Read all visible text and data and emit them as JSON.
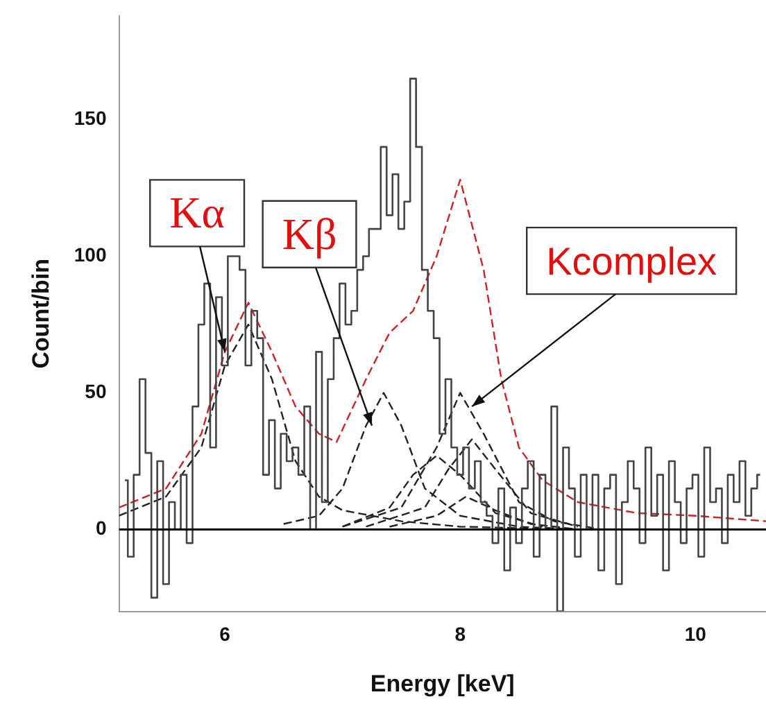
{
  "chart_data": {
    "type": "step",
    "xlabel": "Energy [keV]",
    "ylabel": "Count/bin",
    "xlim": [
      5.1,
      10.6
    ],
    "ylim": [
      -30,
      188
    ],
    "xticks": [
      6,
      8,
      10
    ],
    "yticks": [
      0,
      50,
      100,
      150
    ],
    "grid": false,
    "legend": false,
    "marker": "none",
    "ref_lines": [
      {
        "axis": "y",
        "value": 0,
        "color": "#000000"
      }
    ],
    "annotations": [
      {
        "text": "Kα",
        "x": 6.0,
        "y": 65
      },
      {
        "text": "Kβ",
        "x": 7.25,
        "y": 38
      },
      {
        "text": "Kcomplex",
        "x": 8.1,
        "y": 45
      }
    ],
    "series": [
      {
        "color": "#444444",
        "line_style": "solid",
        "x": [
          5.15,
          5.2,
          5.25,
          5.3,
          5.35,
          5.4,
          5.45,
          5.5,
          5.55,
          5.6,
          5.65,
          5.7,
          5.75,
          5.8,
          5.85,
          5.9,
          5.95,
          6.0,
          6.05,
          6.1,
          6.15,
          6.2,
          6.25,
          6.3,
          6.35,
          6.4,
          6.45,
          6.5,
          6.55,
          6.6,
          6.65,
          6.7,
          6.75,
          6.8,
          6.85,
          6.9,
          6.95,
          7.0,
          7.05,
          7.1,
          7.15,
          7.2,
          7.25,
          7.3,
          7.35,
          7.4,
          7.45,
          7.5,
          7.55,
          7.6,
          7.65,
          7.7,
          7.75,
          7.8,
          7.85,
          7.9,
          7.95,
          8.0,
          8.05,
          8.1,
          8.15,
          8.2,
          8.25,
          8.3,
          8.35,
          8.4,
          8.45,
          8.5,
          8.55,
          8.6,
          8.65,
          8.7,
          8.75,
          8.8,
          8.85,
          8.9,
          8.95,
          9.0,
          9.05,
          9.1,
          9.15,
          9.2,
          9.25,
          9.3,
          9.35,
          9.4,
          9.45,
          9.5,
          9.55,
          9.6,
          9.65,
          9.7,
          9.75,
          9.8,
          9.85,
          9.9,
          9.95,
          10.0,
          10.05,
          10.1,
          10.15,
          10.2,
          10.25,
          10.3,
          10.35,
          10.4,
          10.45,
          10.5,
          10.55
        ],
        "values": [
          18,
          -10,
          20,
          55,
          28,
          -25,
          25,
          -20,
          10,
          0,
          20,
          -5,
          45,
          75,
          90,
          30,
          85,
          60,
          100,
          100,
          95,
          60,
          80,
          70,
          20,
          40,
          15,
          35,
          25,
          30,
          20,
          45,
          0,
          65,
          10,
          55,
          70,
          90,
          75,
          80,
          95,
          100,
          110,
          110,
          140,
          115,
          130,
          110,
          120,
          165,
          140,
          95,
          80,
          70,
          35,
          55,
          30,
          20,
          30,
          15,
          25,
          10,
          5,
          -5,
          15,
          -15,
          8,
          -5,
          15,
          25,
          -10,
          20,
          0,
          45,
          -30,
          30,
          15,
          -10,
          20,
          0,
          20,
          -15,
          15,
          20,
          -20,
          10,
          25,
          15,
          -5,
          30,
          5,
          20,
          -15,
          25,
          10,
          -5,
          15,
          20,
          -10,
          30,
          10,
          15,
          -5,
          20,
          10,
          25,
          5,
          15,
          20
        ]
      },
      {
        "type": "line",
        "color": "#cc2222",
        "line_style": "dashed",
        "x": [
          5.1,
          5.5,
          5.8,
          6.0,
          6.2,
          6.4,
          6.6,
          6.8,
          6.95,
          7.2,
          7.4,
          7.6,
          7.8,
          8.0,
          8.2,
          8.35,
          8.5,
          8.7,
          9.0,
          9.5,
          10.0,
          10.6
        ],
        "values": [
          8,
          15,
          35,
          65,
          83,
          65,
          45,
          35,
          32,
          55,
          72,
          80,
          100,
          128,
          95,
          55,
          30,
          18,
          10,
          6,
          5,
          3
        ]
      },
      {
        "type": "line",
        "color": "#222222",
        "line_style": "dashed",
        "x": [
          5.1,
          5.5,
          5.8,
          6.0,
          6.2,
          6.4,
          6.6,
          6.8,
          7.0,
          7.5,
          8.0,
          9.0
        ],
        "values": [
          5,
          12,
          30,
          60,
          75,
          55,
          25,
          12,
          7,
          3,
          1,
          0
        ]
      },
      {
        "type": "line",
        "color": "#222222",
        "line_style": "dashed",
        "x": [
          6.5,
          6.8,
          7.0,
          7.2,
          7.35,
          7.5,
          7.7,
          8.0,
          8.5,
          9.0
        ],
        "values": [
          2,
          5,
          15,
          38,
          50,
          38,
          15,
          5,
          1,
          0
        ]
      },
      {
        "type": "line",
        "color": "#222222",
        "line_style": "dashed",
        "x": [
          7.0,
          7.5,
          7.8,
          8.0,
          8.2,
          8.5,
          8.8,
          9.2
        ],
        "values": [
          1,
          8,
          30,
          50,
          35,
          10,
          3,
          0
        ]
      },
      {
        "type": "line",
        "color": "#222222",
        "line_style": "dashed",
        "x": [
          7.2,
          7.7,
          7.9,
          8.1,
          8.3,
          8.6,
          9.0
        ],
        "values": [
          1,
          8,
          22,
          33,
          22,
          6,
          1
        ]
      },
      {
        "type": "line",
        "color": "#222222",
        "line_style": "dashed",
        "x": [
          7.0,
          7.4,
          7.6,
          7.8,
          8.0,
          8.3,
          8.7
        ],
        "values": [
          1,
          8,
          20,
          27,
          20,
          6,
          1
        ]
      },
      {
        "type": "line",
        "color": "#222222",
        "line_style": "dashed",
        "x": [
          7.4,
          7.8,
          8.05,
          8.3,
          8.6,
          9.0
        ],
        "values": [
          1,
          5,
          12,
          7,
          2,
          0
        ]
      }
    ]
  }
}
